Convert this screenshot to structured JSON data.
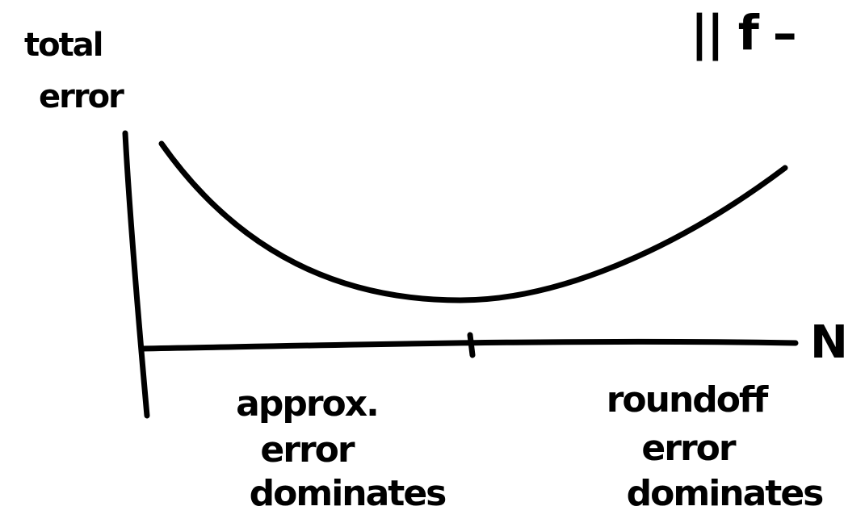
{
  "y_label": {
    "lines": [
      "total",
      "error"
    ]
  },
  "x_label": "N",
  "corner_text": "|| f –",
  "regions": [
    {
      "lines": [
        "approx.",
        "error",
        "dominates"
      ]
    },
    {
      "lines": [
        "roundoff",
        "error",
        "dominates"
      ]
    }
  ]
}
